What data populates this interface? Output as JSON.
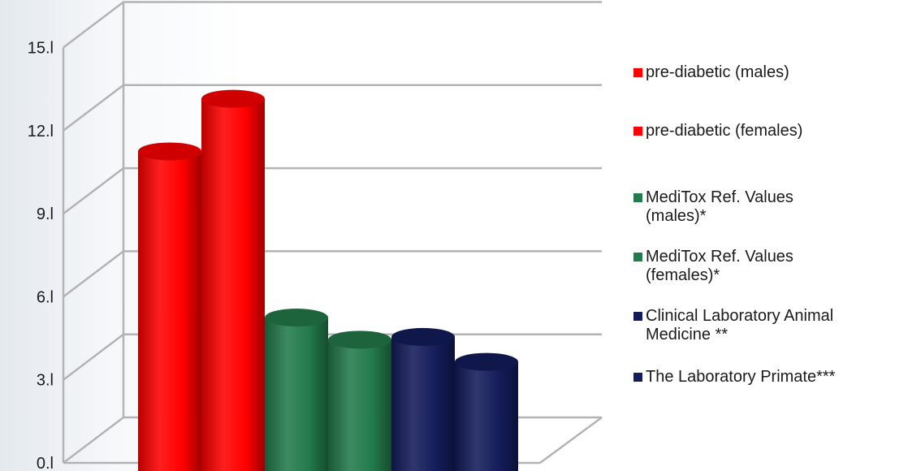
{
  "chart_data": {
    "type": "bar",
    "title": "",
    "xlabel": "",
    "ylabel": "",
    "ylim": [
      0,
      15
    ],
    "ytick_labels": [
      "0.l",
      "3.l",
      "6.l",
      "9.l",
      "12.l",
      "15.l"
    ],
    "grid": true,
    "legend_position": "right",
    "three_d": true,
    "bar_shape": "cylinder",
    "series": [
      {
        "name": "pre-diabetic (males)",
        "value": 11.6,
        "color": "#ff0000"
      },
      {
        "name": "pre-diabetic (females)",
        "value": 13.5,
        "color": "#ff0000"
      },
      {
        "name": "MediTox Ref. Values (males)*",
        "value": 5.6,
        "color": "#237a4b"
      },
      {
        "name": "MediTox Ref. Values (females)*",
        "value": 4.8,
        "color": "#237a4b"
      },
      {
        "name": "Clinical Laboratory Animal Medicine **",
        "value": 4.9,
        "color": "#141c5a"
      },
      {
        "name": "The Laboratory Primate***",
        "value": 4.0,
        "color": "#141c5a"
      }
    ]
  },
  "legend": {
    "items": [
      {
        "lines": [
          "pre-diabetic (males)"
        ],
        "color": "#ff0000"
      },
      {
        "lines": [
          "pre-diabetic (females)"
        ],
        "color": "#ff0000"
      },
      {
        "lines": [
          "MediTox Ref. Values",
          "(males)*"
        ],
        "color": "#237a4b"
      },
      {
        "lines": [
          "MediTox Ref. Values",
          "(females)*"
        ],
        "color": "#237a4b"
      },
      {
        "lines": [
          "Clinical Laboratory Animal",
          "Medicine **"
        ],
        "color": "#141c5a"
      },
      {
        "lines": [
          "The Laboratory Primate***"
        ],
        "color": "#141c5a"
      }
    ]
  }
}
